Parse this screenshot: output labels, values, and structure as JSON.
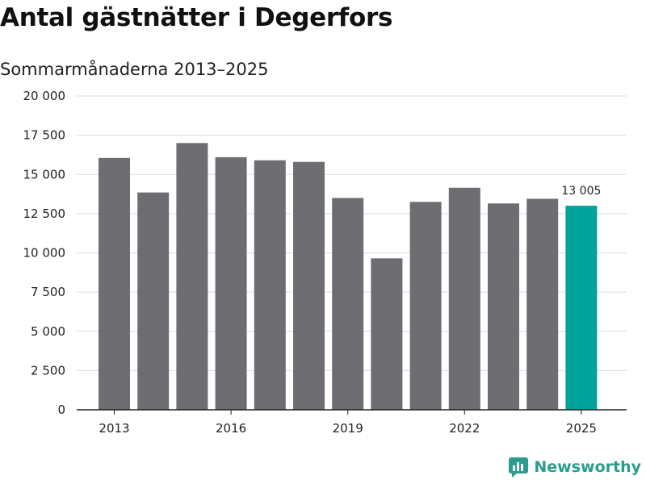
{
  "chart_data": {
    "type": "bar",
    "title": "Antal gästnätter i Degerfors",
    "subtitle": "Sommarmånaderna 2013–2025",
    "categories": [
      "2013",
      "2014",
      "2015",
      "2016",
      "2017",
      "2018",
      "2019",
      "2020",
      "2021",
      "2022",
      "2023",
      "2024",
      "2025"
    ],
    "values": [
      16050,
      13850,
      17000,
      16100,
      15900,
      15800,
      13500,
      9650,
      13250,
      14150,
      13150,
      13450,
      13005
    ],
    "ylim": [
      0,
      20000
    ],
    "yticks": [
      0,
      2500,
      5000,
      7500,
      10000,
      12500,
      15000,
      17500,
      20000
    ],
    "ytick_labels": [
      "0",
      "2 500",
      "5 000",
      "7 500",
      "10 000",
      "12 500",
      "15 000",
      "17 500",
      "20 000"
    ],
    "xtick_labels": [
      "2013",
      "2016",
      "2019",
      "2022",
      "2025"
    ],
    "grid": true,
    "bar_color": "#6d6d72",
    "highlight_color": "#00a39a",
    "highlight_index": 12,
    "data_labels": [
      {
        "index": 12,
        "text": "13 005"
      }
    ]
  },
  "brand": {
    "name": "Newsworthy",
    "icon": "newsworthy-logo-icon",
    "color": "#2a9d8f"
  }
}
